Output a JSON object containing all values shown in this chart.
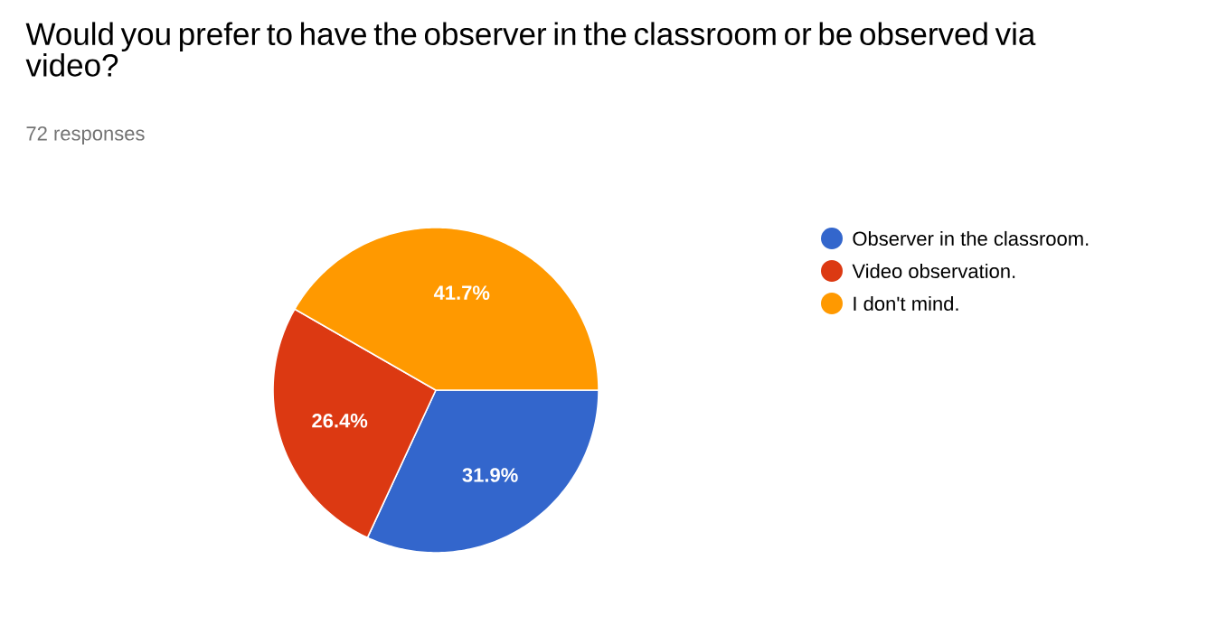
{
  "chart_data": {
    "type": "pie",
    "title": "Would you prefer to have the observer in the classroom or be observed via video?",
    "subtitle": "72 responses",
    "categories": [
      "Observer in the classroom.",
      "Video observation.",
      "I don't mind."
    ],
    "values": [
      31.9,
      26.4,
      41.7
    ],
    "colors": [
      "#3366cc",
      "#dc3912",
      "#ff9900"
    ],
    "value_labels": [
      "31.9%",
      "26.4%",
      "41.7%"
    ],
    "legend": "right"
  }
}
